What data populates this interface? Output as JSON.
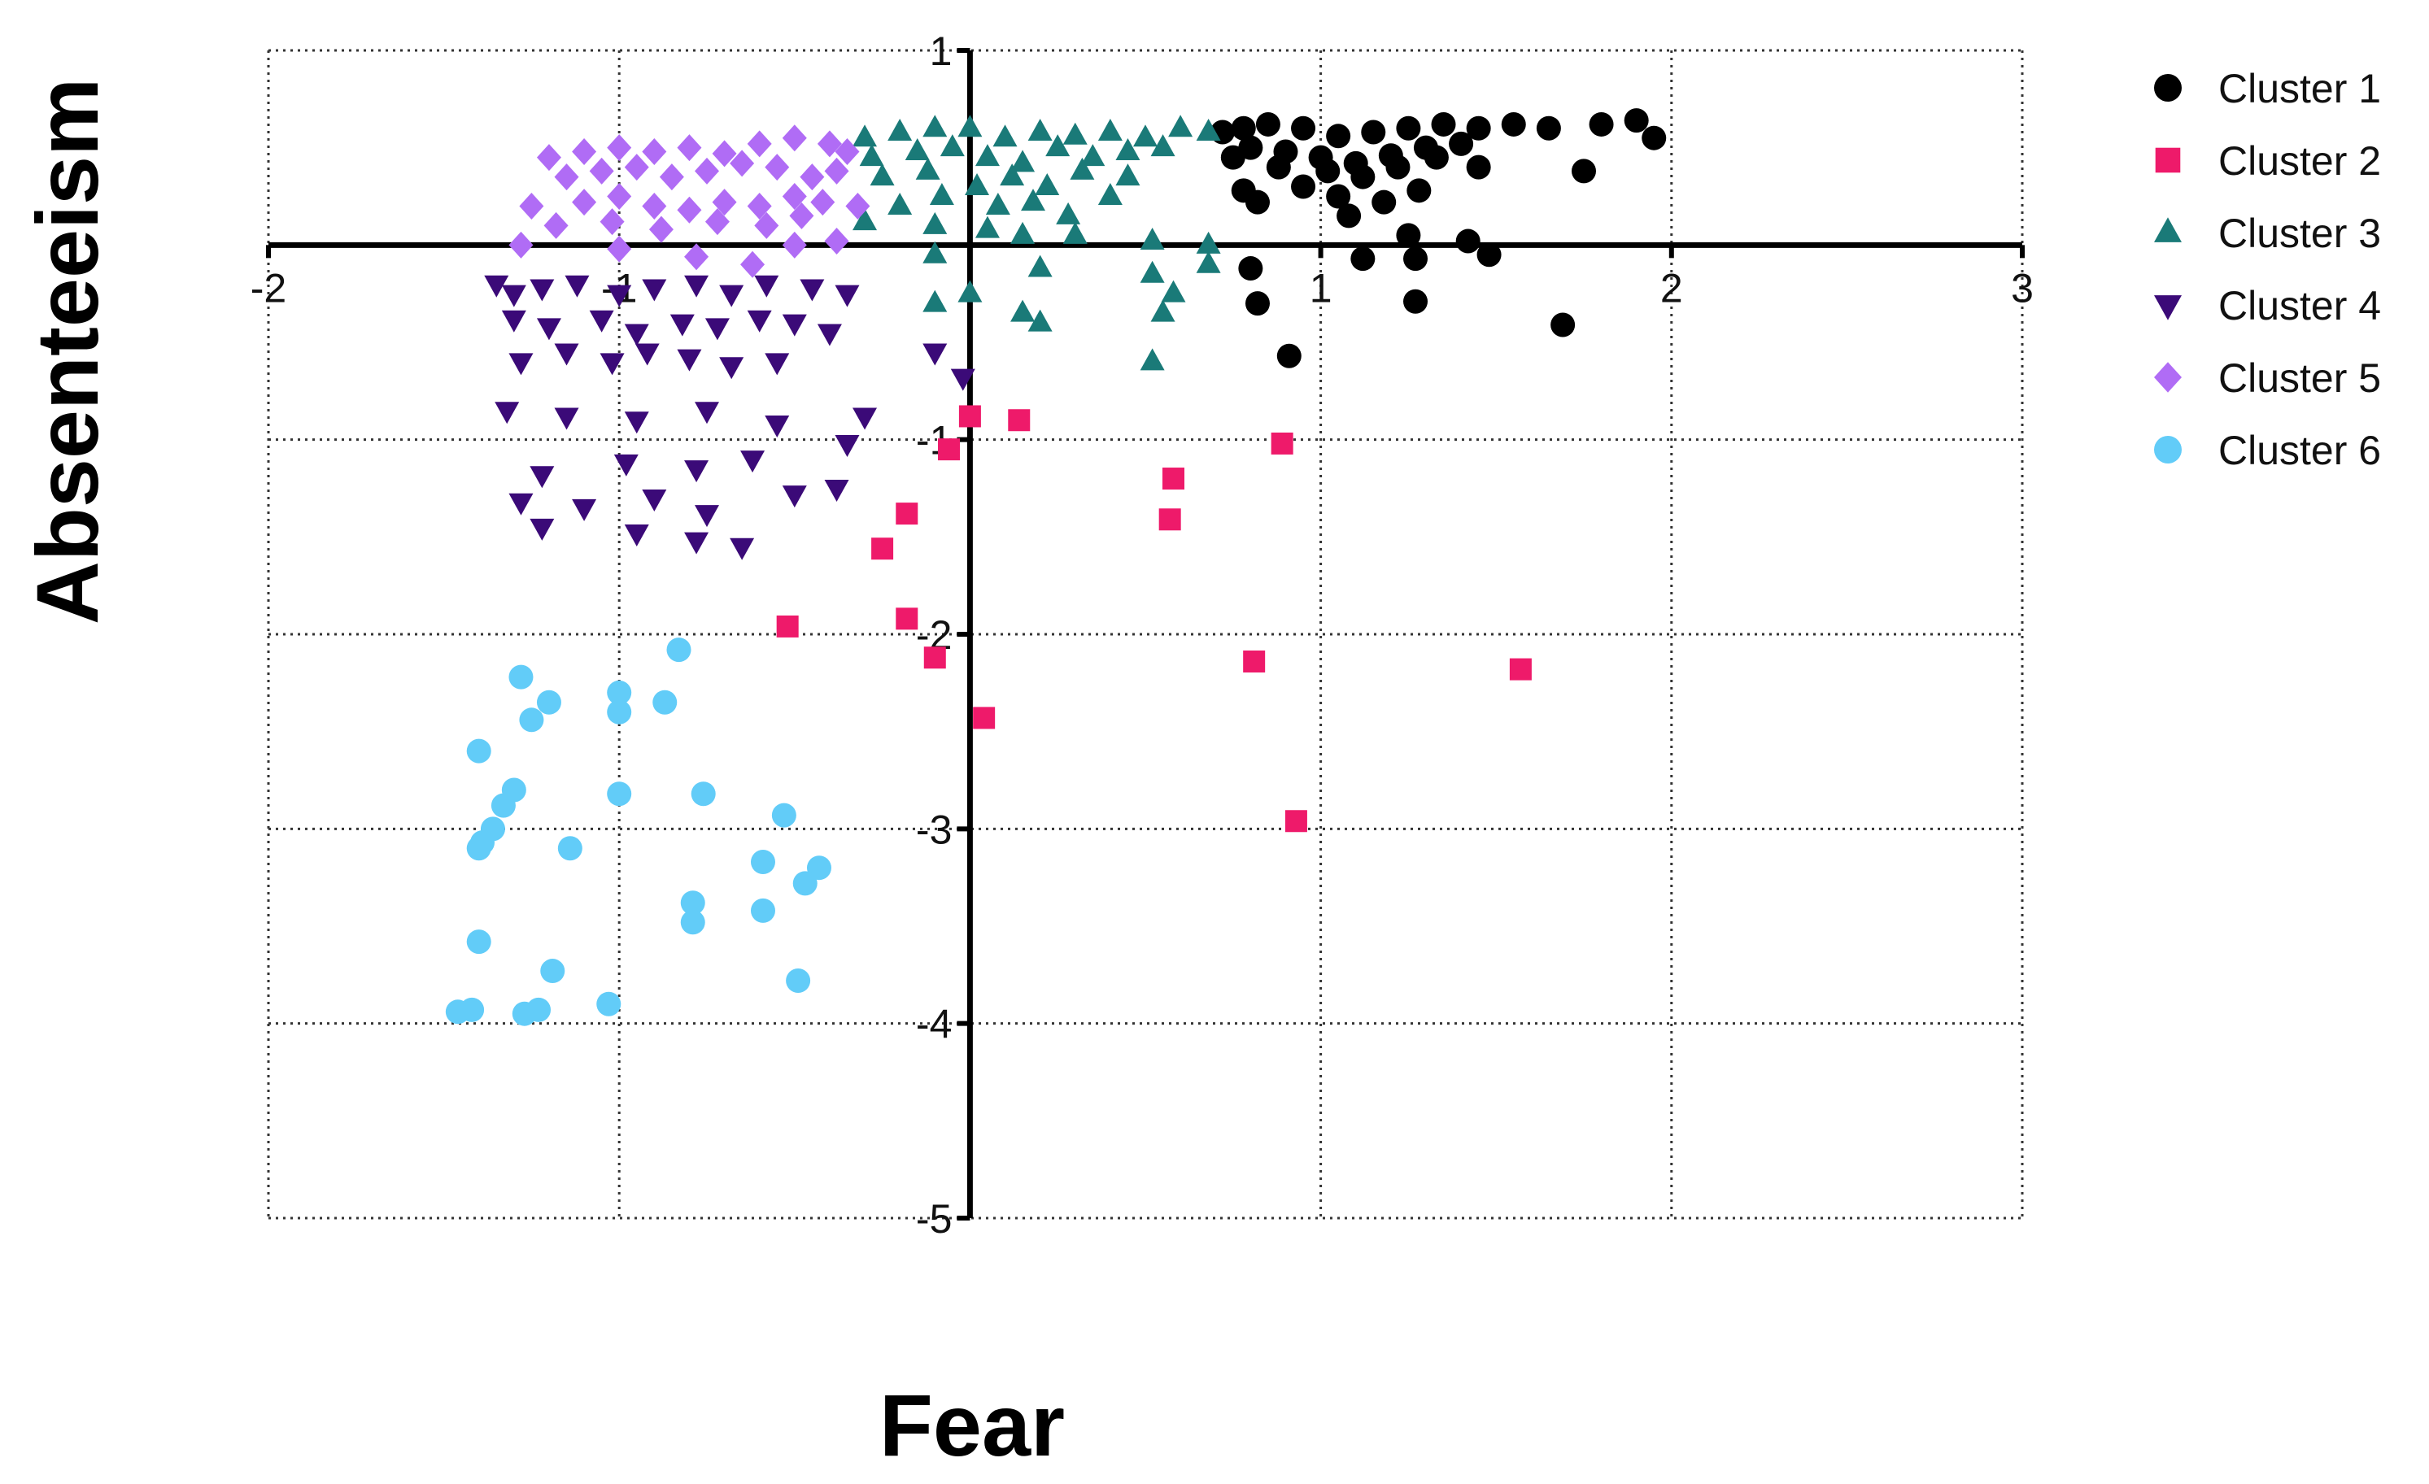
{
  "chart_data": {
    "type": "scatter",
    "title": "",
    "xlabel": "Fear",
    "ylabel": "Absenteeism",
    "xlim": [
      -2,
      3
    ],
    "ylim": [
      -5,
      1
    ],
    "x_ticks": [
      -2,
      -1,
      1,
      2,
      3
    ],
    "y_ticks": [
      1,
      -1,
      -2,
      -3,
      -4,
      -5
    ],
    "x_tick_labels": [
      "-2",
      "-1",
      "1",
      "2",
      "3"
    ],
    "y_tick_labels": [
      "1",
      "-1",
      "-2",
      "-3",
      "-4",
      "-5"
    ],
    "grid": "dotted",
    "legend_position": "right",
    "series": [
      {
        "name": "Cluster 1",
        "marker": "circle",
        "color": "#000000",
        "points": [
          [
            0.72,
            0.58
          ],
          [
            0.78,
            0.6
          ],
          [
            0.85,
            0.62
          ],
          [
            0.95,
            0.6
          ],
          [
            1.05,
            0.56
          ],
          [
            1.15,
            0.58
          ],
          [
            1.25,
            0.6
          ],
          [
            1.35,
            0.62
          ],
          [
            1.45,
            0.6
          ],
          [
            1.55,
            0.62
          ],
          [
            1.65,
            0.6
          ],
          [
            1.8,
            0.62
          ],
          [
            1.9,
            0.64
          ],
          [
            0.8,
            0.5
          ],
          [
            0.9,
            0.48
          ],
          [
            1.0,
            0.45
          ],
          [
            1.1,
            0.42
          ],
          [
            1.2,
            0.46
          ],
          [
            1.3,
            0.5
          ],
          [
            1.4,
            0.52
          ],
          [
            0.75,
            0.45
          ],
          [
            0.88,
            0.4
          ],
          [
            1.02,
            0.38
          ],
          [
            1.12,
            0.35
          ],
          [
            1.22,
            0.4
          ],
          [
            1.33,
            0.45
          ],
          [
            0.78,
            0.28
          ],
          [
            0.95,
            0.3
          ],
          [
            1.05,
            0.25
          ],
          [
            1.18,
            0.22
          ],
          [
            1.28,
            0.28
          ],
          [
            1.45,
            0.4
          ],
          [
            1.75,
            0.38
          ],
          [
            1.95,
            0.55
          ],
          [
            0.82,
            0.22
          ],
          [
            1.08,
            0.15
          ],
          [
            1.25,
            0.05
          ],
          [
            1.42,
            0.02
          ],
          [
            1.48,
            -0.05
          ],
          [
            1.12,
            -0.07
          ],
          [
            1.27,
            -0.07
          ],
          [
            0.8,
            -0.12
          ],
          [
            0.82,
            -0.3
          ],
          [
            1.27,
            -0.29
          ],
          [
            1.69,
            -0.41
          ],
          [
            0.91,
            -0.57
          ]
        ]
      },
      {
        "name": "Cluster 2",
        "marker": "square",
        "color": "#ee1a6a",
        "points": [
          [
            0.0,
            -0.88
          ],
          [
            0.14,
            -0.9
          ],
          [
            -0.06,
            -1.05
          ],
          [
            0.89,
            -1.02
          ],
          [
            0.58,
            -1.2
          ],
          [
            -0.18,
            -1.38
          ],
          [
            0.57,
            -1.41
          ],
          [
            -0.25,
            -1.56
          ],
          [
            -0.52,
            -1.96
          ],
          [
            -0.18,
            -1.92
          ],
          [
            -0.1,
            -2.12
          ],
          [
            0.81,
            -2.14
          ],
          [
            1.57,
            -2.18
          ],
          [
            0.04,
            -2.43
          ],
          [
            0.93,
            -2.96
          ]
        ]
      },
      {
        "name": "Cluster 3",
        "marker": "triangle-up",
        "color": "#1a7a78",
        "points": [
          [
            -0.3,
            0.55
          ],
          [
            -0.2,
            0.58
          ],
          [
            -0.1,
            0.6
          ],
          [
            0.0,
            0.6
          ],
          [
            0.1,
            0.55
          ],
          [
            0.2,
            0.58
          ],
          [
            0.3,
            0.56
          ],
          [
            0.4,
            0.58
          ],
          [
            0.5,
            0.55
          ],
          [
            0.6,
            0.6
          ],
          [
            0.68,
            0.58
          ],
          [
            -0.28,
            0.45
          ],
          [
            -0.15,
            0.48
          ],
          [
            -0.05,
            0.5
          ],
          [
            0.05,
            0.45
          ],
          [
            0.15,
            0.42
          ],
          [
            0.25,
            0.5
          ],
          [
            0.35,
            0.45
          ],
          [
            0.45,
            0.48
          ],
          [
            0.55,
            0.5
          ],
          [
            -0.25,
            0.35
          ],
          [
            -0.12,
            0.38
          ],
          [
            0.02,
            0.3
          ],
          [
            0.12,
            0.35
          ],
          [
            0.22,
            0.3
          ],
          [
            0.32,
            0.38
          ],
          [
            0.45,
            0.35
          ],
          [
            -0.2,
            0.2
          ],
          [
            -0.08,
            0.25
          ],
          [
            0.08,
            0.2
          ],
          [
            0.18,
            0.22
          ],
          [
            0.28,
            0.15
          ],
          [
            0.4,
            0.25
          ],
          [
            -0.3,
            0.12
          ],
          [
            -0.1,
            0.1
          ],
          [
            0.05,
            0.08
          ],
          [
            0.15,
            0.05
          ],
          [
            0.3,
            0.05
          ],
          [
            0.52,
            0.02
          ],
          [
            0.68,
            0.0
          ],
          [
            -0.1,
            -0.05
          ],
          [
            0.2,
            -0.12
          ],
          [
            0.52,
            -0.15
          ],
          [
            0.68,
            -0.1
          ],
          [
            0.58,
            -0.25
          ],
          [
            -0.1,
            -0.3
          ],
          [
            0.0,
            -0.25
          ],
          [
            0.15,
            -0.35
          ],
          [
            0.2,
            -0.4
          ],
          [
            0.55,
            -0.35
          ],
          [
            0.52,
            -0.6
          ]
        ]
      },
      {
        "name": "Cluster 4",
        "marker": "triangle-down",
        "color": "#3b0a78",
        "points": [
          [
            -1.35,
            -0.2
          ],
          [
            -1.3,
            -0.25
          ],
          [
            -1.22,
            -0.22
          ],
          [
            -1.12,
            -0.2
          ],
          [
            -1.0,
            -0.25
          ],
          [
            -0.9,
            -0.22
          ],
          [
            -0.78,
            -0.2
          ],
          [
            -0.68,
            -0.25
          ],
          [
            -0.58,
            -0.2
          ],
          [
            -0.45,
            -0.22
          ],
          [
            -0.35,
            -0.25
          ],
          [
            -1.3,
            -0.38
          ],
          [
            -1.2,
            -0.42
          ],
          [
            -1.05,
            -0.38
          ],
          [
            -0.95,
            -0.45
          ],
          [
            -0.82,
            -0.4
          ],
          [
            -0.72,
            -0.42
          ],
          [
            -0.6,
            -0.38
          ],
          [
            -0.5,
            -0.4
          ],
          [
            -0.4,
            -0.45
          ],
          [
            -1.28,
            -0.6
          ],
          [
            -1.15,
            -0.55
          ],
          [
            -1.02,
            -0.6
          ],
          [
            -0.92,
            -0.55
          ],
          [
            -0.8,
            -0.58
          ],
          [
            -0.68,
            -0.62
          ],
          [
            -0.55,
            -0.6
          ],
          [
            -0.1,
            -0.55
          ],
          [
            -1.32,
            -0.85
          ],
          [
            -1.15,
            -0.88
          ],
          [
            -0.95,
            -0.9
          ],
          [
            -0.75,
            -0.85
          ],
          [
            -0.55,
            -0.92
          ],
          [
            -0.3,
            -0.88
          ],
          [
            -0.02,
            -0.68
          ],
          [
            -1.22,
            -1.18
          ],
          [
            -0.98,
            -1.12
          ],
          [
            -0.78,
            -1.15
          ],
          [
            -0.62,
            -1.1
          ],
          [
            -0.35,
            -1.02
          ],
          [
            -1.28,
            -1.32
          ],
          [
            -1.1,
            -1.35
          ],
          [
            -0.9,
            -1.3
          ],
          [
            -0.75,
            -1.38
          ],
          [
            -0.5,
            -1.28
          ],
          [
            -1.22,
            -1.45
          ],
          [
            -0.95,
            -1.48
          ],
          [
            -0.78,
            -1.52
          ],
          [
            -0.65,
            -1.55
          ],
          [
            -0.38,
            -1.25
          ]
        ]
      },
      {
        "name": "Cluster 5",
        "marker": "diamond",
        "color": "#b06cf5",
        "points": [
          [
            -1.2,
            0.45
          ],
          [
            -1.1,
            0.48
          ],
          [
            -1.0,
            0.5
          ],
          [
            -0.9,
            0.48
          ],
          [
            -0.8,
            0.5
          ],
          [
            -0.7,
            0.47
          ],
          [
            -0.6,
            0.52
          ],
          [
            -0.5,
            0.55
          ],
          [
            -0.4,
            0.52
          ],
          [
            -0.35,
            0.48
          ],
          [
            -1.15,
            0.35
          ],
          [
            -1.05,
            0.38
          ],
          [
            -0.95,
            0.4
          ],
          [
            -0.85,
            0.35
          ],
          [
            -0.75,
            0.38
          ],
          [
            -0.65,
            0.42
          ],
          [
            -0.55,
            0.4
          ],
          [
            -0.45,
            0.35
          ],
          [
            -0.38,
            0.38
          ],
          [
            -1.25,
            0.2
          ],
          [
            -1.1,
            0.22
          ],
          [
            -1.0,
            0.25
          ],
          [
            -0.9,
            0.2
          ],
          [
            -0.8,
            0.18
          ],
          [
            -0.7,
            0.22
          ],
          [
            -0.6,
            0.2
          ],
          [
            -0.5,
            0.25
          ],
          [
            -0.42,
            0.22
          ],
          [
            -1.18,
            0.1
          ],
          [
            -1.02,
            0.12
          ],
          [
            -0.88,
            0.08
          ],
          [
            -0.72,
            0.12
          ],
          [
            -0.58,
            0.1
          ],
          [
            -0.48,
            0.15
          ],
          [
            -0.32,
            0.2
          ],
          [
            -1.28,
            0.0
          ],
          [
            -1.0,
            -0.02
          ],
          [
            -0.78,
            -0.06
          ],
          [
            -0.62,
            -0.1
          ],
          [
            -0.5,
            0.0
          ],
          [
            -0.38,
            0.02
          ]
        ]
      },
      {
        "name": "Cluster 6",
        "marker": "circle",
        "color": "#62ccf8",
        "points": [
          [
            -0.83,
            -2.08
          ],
          [
            -1.28,
            -2.22
          ],
          [
            -1.0,
            -2.3
          ],
          [
            -1.2,
            -2.35
          ],
          [
            -1.25,
            -2.44
          ],
          [
            -1.0,
            -2.4
          ],
          [
            -0.87,
            -2.35
          ],
          [
            -1.4,
            -2.6
          ],
          [
            -1.3,
            -2.8
          ],
          [
            -1.33,
            -2.88
          ],
          [
            -1.0,
            -2.82
          ],
          [
            -0.76,
            -2.82
          ],
          [
            -0.53,
            -2.93
          ],
          [
            -1.36,
            -3.0
          ],
          [
            -1.39,
            -3.07
          ],
          [
            -1.4,
            -3.1
          ],
          [
            -1.14,
            -3.1
          ],
          [
            -0.59,
            -3.17
          ],
          [
            -0.43,
            -3.2
          ],
          [
            -0.47,
            -3.28
          ],
          [
            -0.79,
            -3.38
          ],
          [
            -0.79,
            -3.48
          ],
          [
            -0.59,
            -3.42
          ],
          [
            -1.4,
            -3.58
          ],
          [
            -1.19,
            -3.73
          ],
          [
            -0.49,
            -3.78
          ],
          [
            -1.46,
            -3.94
          ],
          [
            -1.42,
            -3.93
          ],
          [
            -1.27,
            -3.95
          ],
          [
            -1.23,
            -3.93
          ],
          [
            -1.03,
            -3.9
          ]
        ]
      }
    ]
  }
}
